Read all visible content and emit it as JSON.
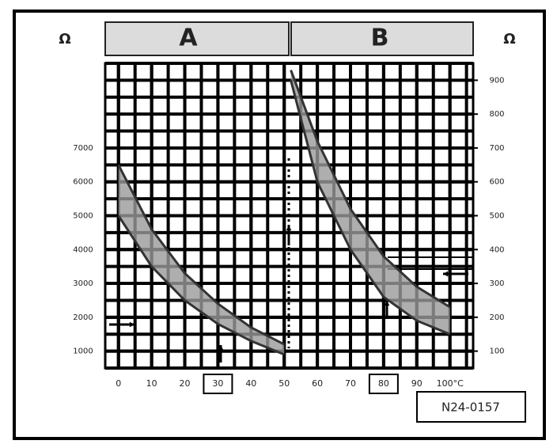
{
  "chart_data": {
    "type": "line",
    "panels": [
      "A",
      "B"
    ],
    "ylabel": "Ω",
    "y2label": "Ω",
    "annotation": "N24-0157",
    "xlim": [
      -4,
      107
    ],
    "xticks": [
      0,
      10,
      20,
      30,
      40,
      50,
      60,
      70,
      80,
      90,
      {
        "value": 100,
        "label": "100°C"
      }
    ],
    "highlighted_xticks": [
      30,
      80
    ],
    "ylim": [
      500,
      9500
    ],
    "yticks": [
      1000,
      2000,
      3000,
      4000,
      5000,
      6000,
      7000
    ],
    "y2lim": [
      50,
      950
    ],
    "y2ticks": [
      100,
      200,
      300,
      400,
      500,
      600,
      700,
      800,
      900
    ],
    "grid": true,
    "band_color": "#9a9a9a",
    "series": [
      {
        "name": "A",
        "color": "#333333",
        "x": [
          0,
          10,
          20,
          30,
          40,
          50
        ],
        "values": [
          6500,
          4600,
          3300,
          2400,
          1700,
          1200
        ]
      },
      {
        "name": "A",
        "color": "#333333",
        "x": [
          0,
          10,
          20,
          30,
          40,
          50
        ],
        "values": [
          5000,
          3500,
          2500,
          1800,
          1300,
          900
        ]
      },
      {
        "name": "B",
        "color": "#333333",
        "axis": "y2",
        "x": [
          52,
          60,
          70,
          80,
          90,
          100
        ],
        "values": [
          930,
          720,
          520,
          380,
          290,
          230
        ]
      },
      {
        "name": "B",
        "color": "#333333",
        "axis": "y2",
        "x": [
          52,
          60,
          70,
          80,
          90,
          100
        ],
        "values": [
          900,
          600,
          400,
          260,
          190,
          150
        ]
      }
    ]
  }
}
